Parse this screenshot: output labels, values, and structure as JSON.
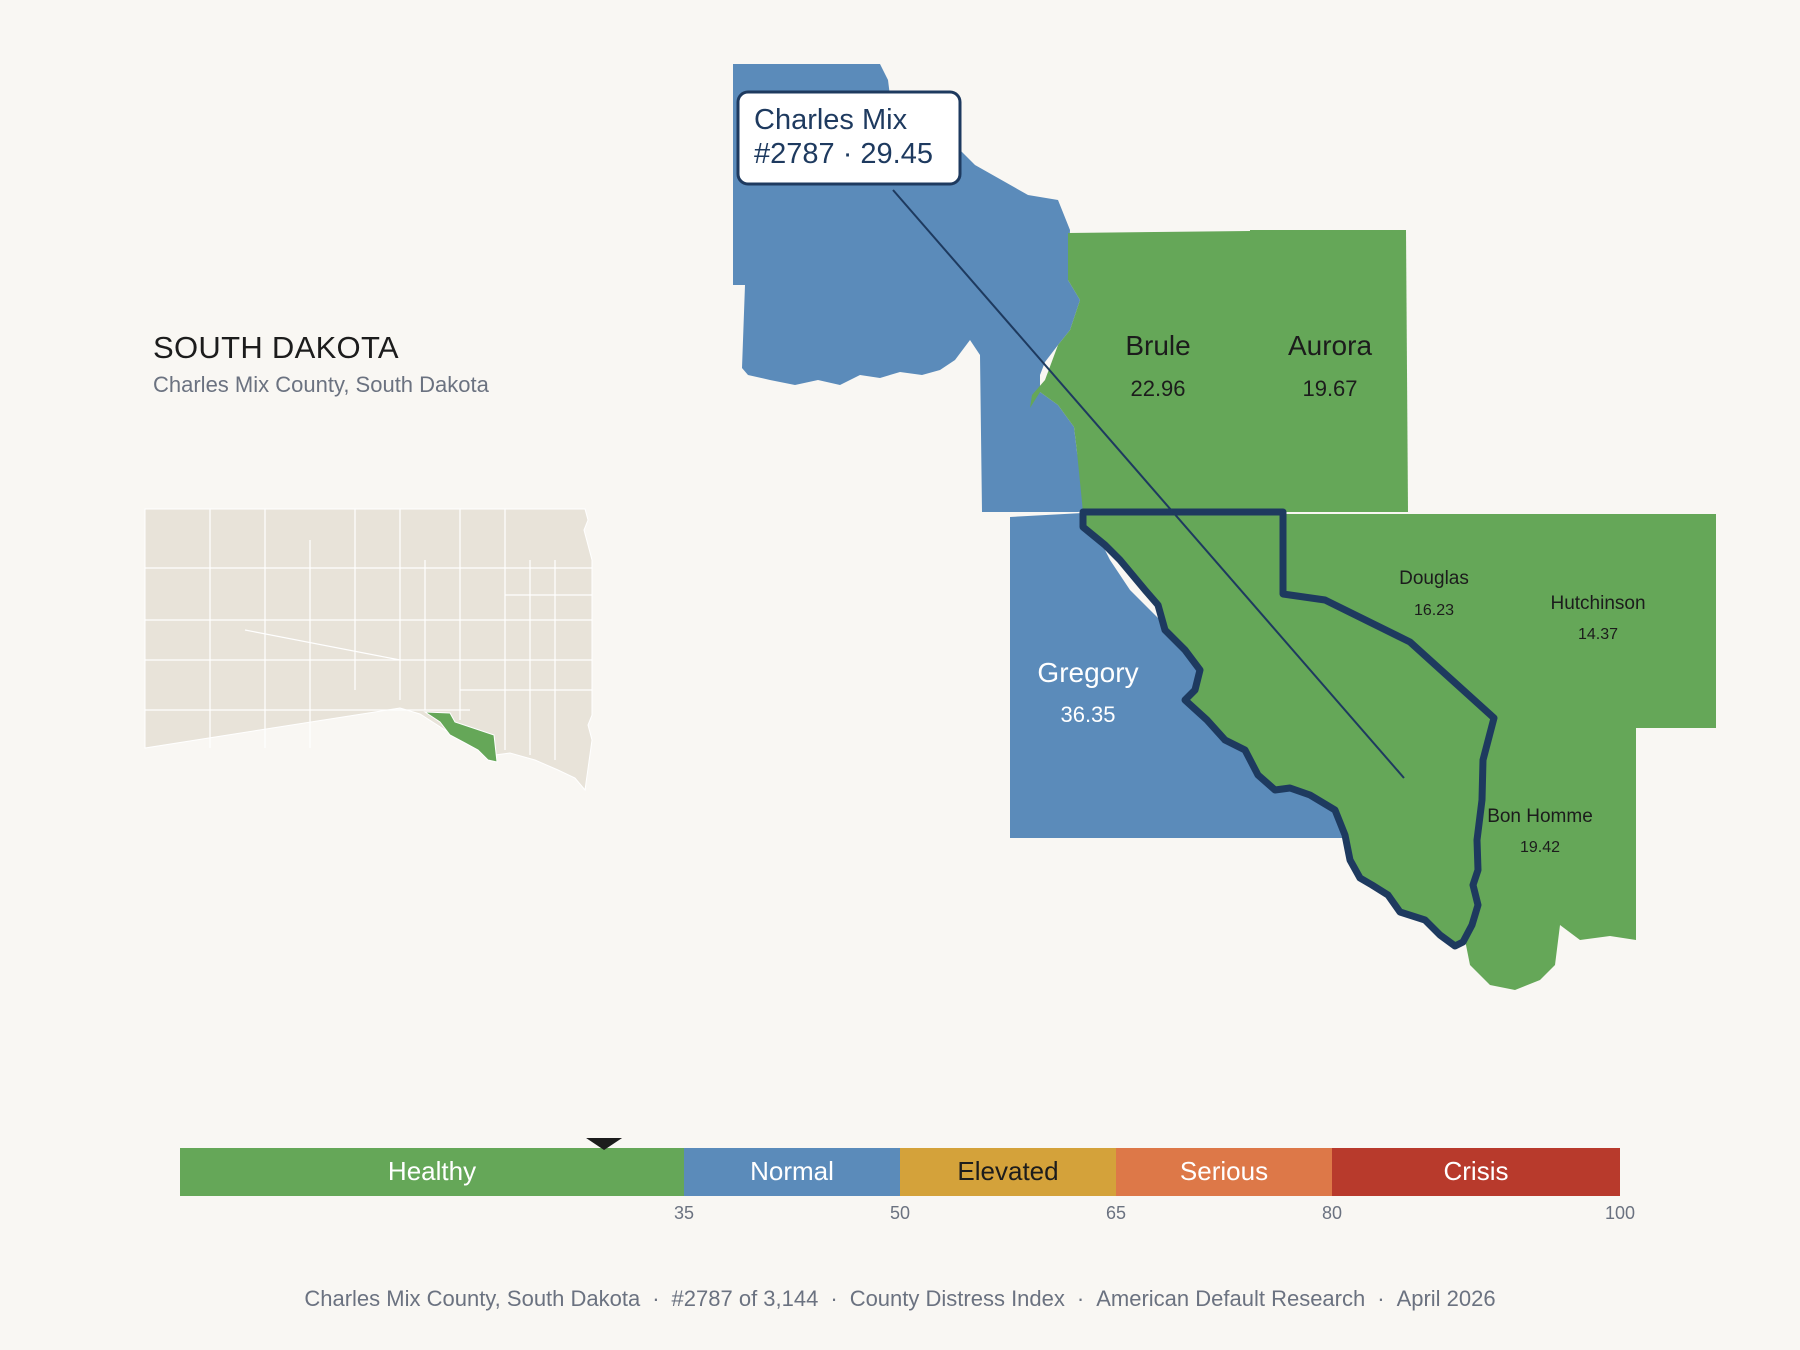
{
  "header": {
    "state": "SOUTH DAKOTA",
    "subtitle": "Charles Mix County, South Dakota"
  },
  "focus": {
    "county": "Charles Mix",
    "rank_label": "#2787 · 29.45",
    "rank": 2787,
    "score": 29.45
  },
  "counties": [
    {
      "name": "Charles Mix",
      "score": "29.45",
      "category": "Healthy"
    },
    {
      "name": "Brule",
      "score": "22.96",
      "category": "Healthy"
    },
    {
      "name": "Aurora",
      "score": "19.67",
      "category": "Healthy"
    },
    {
      "name": "Douglas",
      "score": "16.23",
      "category": "Healthy"
    },
    {
      "name": "Hutchinson",
      "score": "14.37",
      "category": "Healthy"
    },
    {
      "name": "Bon Homme",
      "score": "19.42",
      "category": "Healthy"
    },
    {
      "name": "Gregory",
      "score": "36.35",
      "category": "Normal"
    },
    {
      "name": "",
      "score": "",
      "category": "Normal"
    }
  ],
  "scale": {
    "min": 0,
    "max": 100,
    "marker_value": 29.45,
    "bands": [
      {
        "label": "Healthy",
        "from": 0,
        "to": 35,
        "color": "#65a758"
      },
      {
        "label": "Normal",
        "from": 35,
        "to": 50,
        "color": "#5b8bba"
      },
      {
        "label": "Elevated",
        "from": 50,
        "to": 65,
        "color": "#d4a23a"
      },
      {
        "label": "Serious",
        "from": 65,
        "to": 80,
        "color": "#dd7848"
      },
      {
        "label": "Crisis",
        "from": 80,
        "to": 100,
        "color": "#b83a2c"
      }
    ],
    "ticks": [
      "35",
      "50",
      "65",
      "80",
      "100"
    ]
  },
  "colors": {
    "healthy": "#65a758",
    "normal": "#5b8bba",
    "outline": "#1e3a5f",
    "inset_fill": "#e8e3d9"
  },
  "footer": {
    "county": "Charles Mix County, South Dakota",
    "rank": "#2787 of 3,144",
    "index": "County Distress Index",
    "source": "American Default Research",
    "date": "April 2026"
  }
}
